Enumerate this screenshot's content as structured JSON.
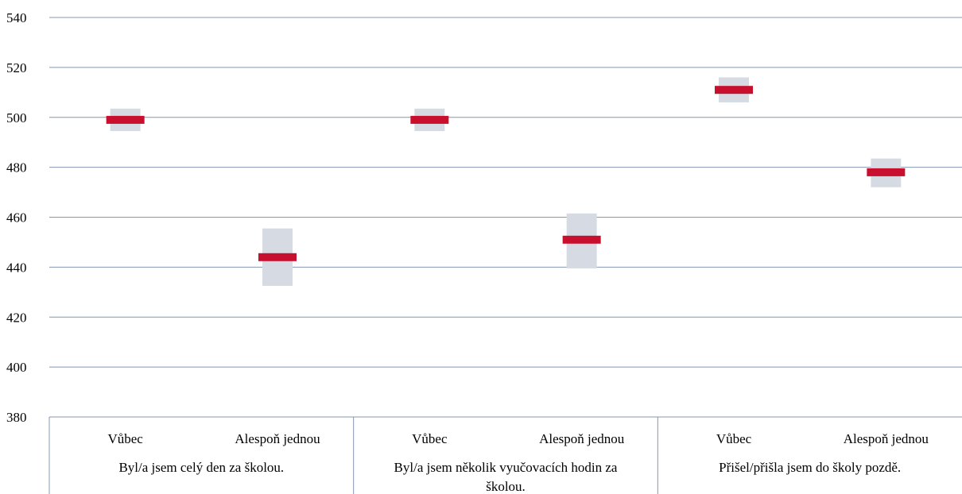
{
  "chart_data": {
    "type": "interval",
    "title": "",
    "xlabel": "",
    "ylabel": "",
    "ylim": [
      380,
      540
    ],
    "yticks": [
      380,
      400,
      420,
      440,
      460,
      480,
      500,
      520,
      540
    ],
    "ytick_labels": [
      "380",
      "400",
      "420",
      "440",
      "460",
      "480",
      "500",
      "520",
      "540"
    ],
    "grid": true,
    "groups": [
      {
        "label": "Byl/a jsem celý den za školou.",
        "label_lines": [
          "Byl/a jsem celý den za školou."
        ]
      },
      {
        "label": "Byl/a jsem několik vyučovacích hodin za školou.",
        "label_lines": [
          "Byl/a jsem několik vyučovacích hodin za",
          "školou."
        ]
      },
      {
        "label": "Přišel/přišla jsem do školy pozdě.",
        "label_lines": [
          "Přišel/přišla jsem do školy pozdě."
        ]
      }
    ],
    "categories": [
      "Vůbec",
      "Alespoň jednou",
      "Vůbec",
      "Alespoň jednou",
      "Vůbec",
      "Alespoň jednou"
    ],
    "points": [
      {
        "group": 0,
        "category": "Vůbec",
        "mean": 499,
        "low": 494.5,
        "high": 503.5
      },
      {
        "group": 0,
        "category": "Alespoň jednou",
        "mean": 444,
        "low": 432.5,
        "high": 455.5
      },
      {
        "group": 1,
        "category": "Vůbec",
        "mean": 499,
        "low": 494.5,
        "high": 503.5
      },
      {
        "group": 1,
        "category": "Alespoň jednou",
        "mean": 451,
        "low": 439.5,
        "high": 461.5
      },
      {
        "group": 2,
        "category": "Vůbec",
        "mean": 511,
        "low": 506,
        "high": 516
      },
      {
        "group": 2,
        "category": "Alespoň jednou",
        "mean": 478,
        "low": 472,
        "high": 483.5
      }
    ],
    "colors": {
      "mean": "#c8102e",
      "interval": "#d6dbe3",
      "grid": "#8497b0",
      "axis": "#8497b0"
    }
  }
}
